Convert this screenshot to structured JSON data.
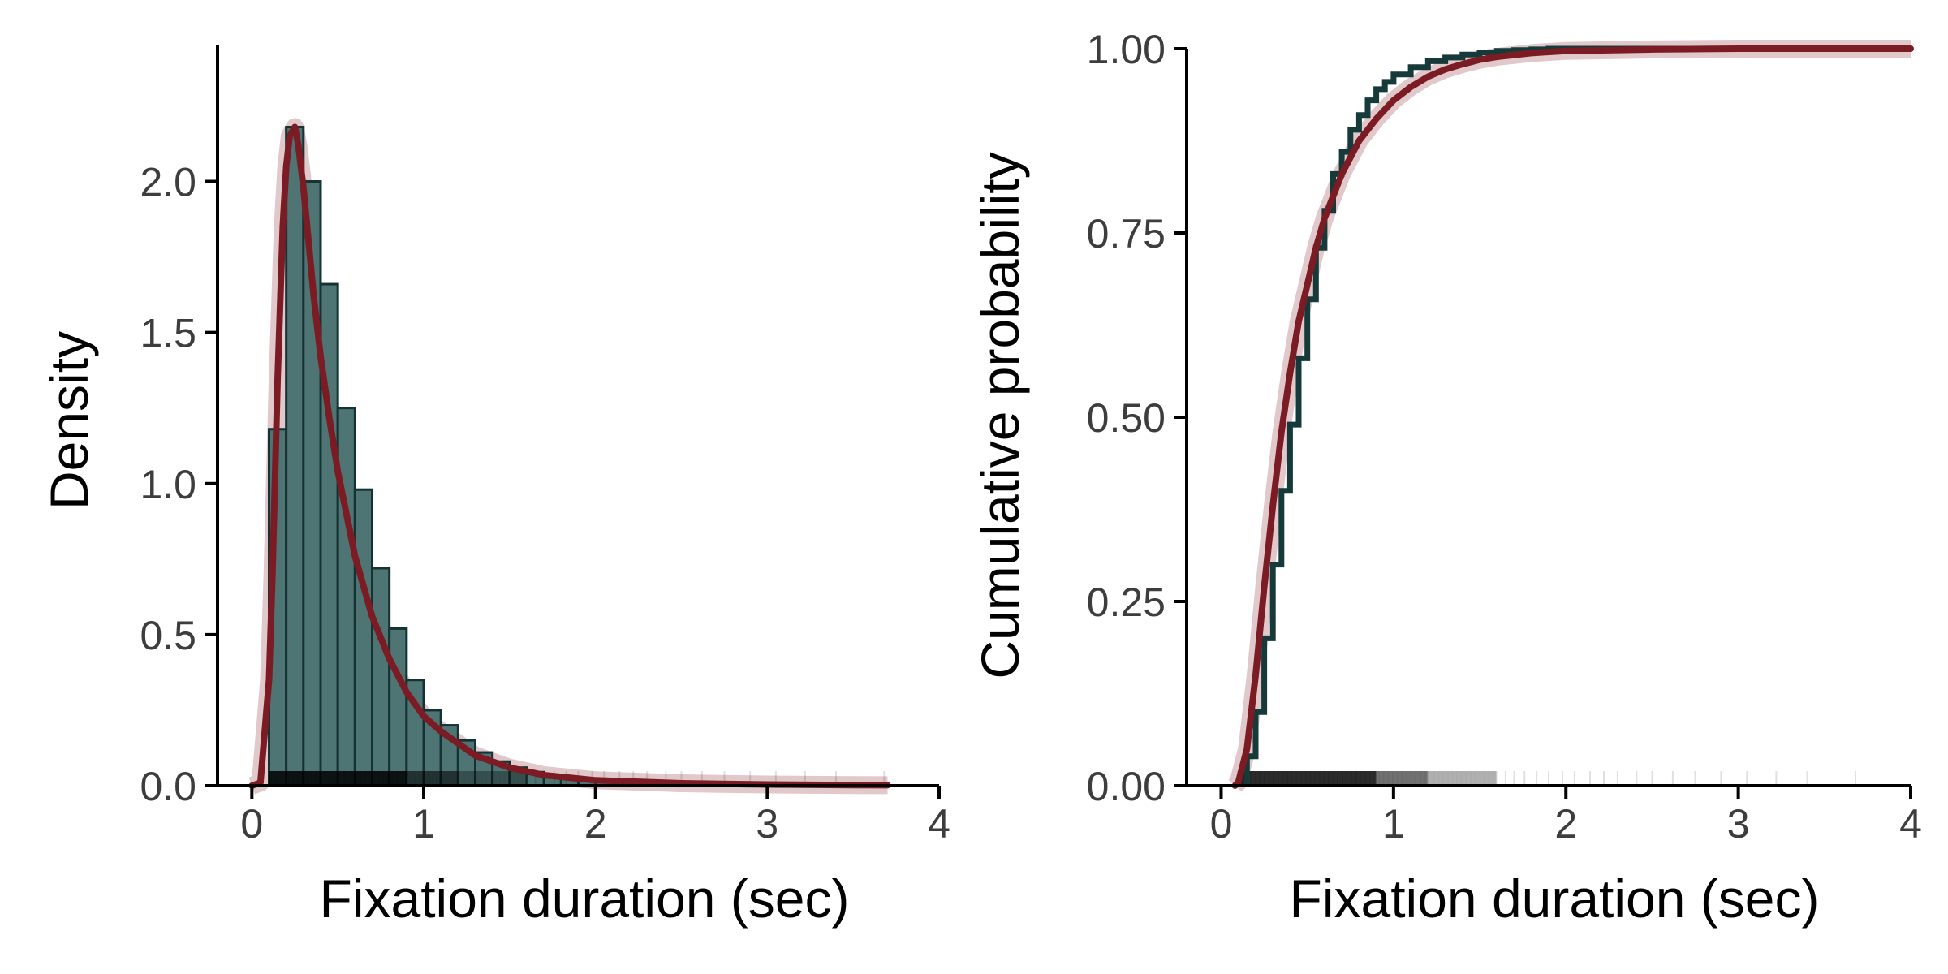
{
  "colors": {
    "bar_fill": "#4f7474",
    "bar_edge": "#163333",
    "ecdf_line": "#163a3a",
    "fit_line": "#7b1c25",
    "fit_band": "#c99a9f",
    "rug": "#000000",
    "axis": "#000000",
    "tick_text": "#3d3d3d"
  },
  "chart_data": [
    {
      "type": "histogram",
      "name": "density-panel",
      "xlabel": "Fixation duration (sec)",
      "ylabel": "Density",
      "xlim": [
        -0.2,
        4.0
      ],
      "ylim": [
        0.0,
        2.45
      ],
      "xticks": [
        0,
        1,
        2,
        3,
        4
      ],
      "xtick_labels": [
        "0",
        "1",
        "2",
        "3",
        "4"
      ],
      "yticks": [
        0.0,
        0.5,
        1.0,
        1.5,
        2.0
      ],
      "ytick_labels": [
        "0.0",
        "0.5",
        "1.0",
        "1.5",
        "2.0"
      ],
      "grid": false,
      "bin_width": 0.1,
      "bins": [
        {
          "x0": 0.0,
          "density": 0.0
        },
        {
          "x0": 0.1,
          "density": 1.18
        },
        {
          "x0": 0.2,
          "density": 2.18
        },
        {
          "x0": 0.3,
          "density": 2.0
        },
        {
          "x0": 0.4,
          "density": 1.66
        },
        {
          "x0": 0.5,
          "density": 1.25
        },
        {
          "x0": 0.6,
          "density": 0.98
        },
        {
          "x0": 0.7,
          "density": 0.72
        },
        {
          "x0": 0.8,
          "density": 0.52
        },
        {
          "x0": 0.9,
          "density": 0.35
        },
        {
          "x0": 1.0,
          "density": 0.25
        },
        {
          "x0": 1.1,
          "density": 0.2
        },
        {
          "x0": 1.2,
          "density": 0.15
        },
        {
          "x0": 1.3,
          "density": 0.11
        },
        {
          "x0": 1.4,
          "density": 0.08
        },
        {
          "x0": 1.5,
          "density": 0.06
        },
        {
          "x0": 1.6,
          "density": 0.045
        },
        {
          "x0": 1.7,
          "density": 0.035
        },
        {
          "x0": 1.8,
          "density": 0.025
        },
        {
          "x0": 1.9,
          "density": 0.02
        },
        {
          "x0": 2.0,
          "density": 0.015
        },
        {
          "x0": 2.1,
          "density": 0.012
        },
        {
          "x0": 2.2,
          "density": 0.01
        },
        {
          "x0": 2.3,
          "density": 0.008
        },
        {
          "x0": 2.4,
          "density": 0.006
        },
        {
          "x0": 2.5,
          "density": 0.005
        },
        {
          "x0": 2.6,
          "density": 0.004
        },
        {
          "x0": 2.7,
          "density": 0.003
        },
        {
          "x0": 2.8,
          "density": 0.003
        },
        {
          "x0": 2.9,
          "density": 0.002
        },
        {
          "x0": 3.0,
          "density": 0.002
        },
        {
          "x0": 3.1,
          "density": 0.002
        },
        {
          "x0": 3.2,
          "density": 0.001
        },
        {
          "x0": 3.3,
          "density": 0.001
        },
        {
          "x0": 3.4,
          "density": 0.001
        },
        {
          "x0": 3.5,
          "density": 0.001
        },
        {
          "x0": 3.6,
          "density": 0.001
        }
      ],
      "fit_curve": {
        "x": [
          0.0,
          0.05,
          0.1,
          0.12,
          0.15,
          0.18,
          0.2,
          0.22,
          0.25,
          0.27,
          0.3,
          0.33,
          0.36,
          0.4,
          0.45,
          0.5,
          0.55,
          0.6,
          0.7,
          0.8,
          0.9,
          1.0,
          1.1,
          1.2,
          1.3,
          1.4,
          1.5,
          1.7,
          2.0,
          2.5,
          3.0,
          3.5,
          3.7
        ],
        "y": [
          0.0,
          0.01,
          0.35,
          0.7,
          1.35,
          1.85,
          2.05,
          2.15,
          2.18,
          2.12,
          1.98,
          1.8,
          1.62,
          1.42,
          1.22,
          1.04,
          0.9,
          0.76,
          0.56,
          0.42,
          0.31,
          0.23,
          0.18,
          0.14,
          0.1,
          0.08,
          0.06,
          0.035,
          0.018,
          0.008,
          0.004,
          0.002,
          0.0015
        ]
      },
      "rug": {
        "from": 0.1,
        "to": 3.7,
        "dense_until": 1.6,
        "tail_points": [
          1.65,
          1.7,
          1.76,
          1.83,
          1.9,
          1.98,
          2.05,
          2.14,
          2.22,
          2.3,
          2.41,
          2.5,
          2.62,
          2.75,
          2.9,
          3.05,
          3.22,
          3.4,
          3.68
        ]
      }
    },
    {
      "type": "line",
      "name": "cdf-panel",
      "xlabel": "Fixation duration (sec)",
      "ylabel": "Cumulative probability",
      "xlim": [
        -0.2,
        4.0
      ],
      "ylim": [
        0.0,
        1.0
      ],
      "xticks": [
        0,
        1,
        2,
        3,
        4
      ],
      "xtick_labels": [
        "0",
        "1",
        "2",
        "3",
        "4"
      ],
      "yticks": [
        0.0,
        0.25,
        0.5,
        0.75,
        1.0
      ],
      "ytick_labels": [
        "0.00",
        "0.25",
        "0.50",
        "0.75",
        "1.00"
      ],
      "grid": false,
      "ecdf": {
        "x": [
          0.15,
          0.2,
          0.25,
          0.3,
          0.35,
          0.4,
          0.45,
          0.5,
          0.55,
          0.6,
          0.65,
          0.7,
          0.75,
          0.8,
          0.85,
          0.9,
          0.95,
          1.0,
          1.1,
          1.2,
          1.3,
          1.4,
          1.5,
          1.6,
          1.7,
          1.8,
          1.9,
          2.0,
          4.0
        ],
        "y": [
          0.04,
          0.1,
          0.2,
          0.3,
          0.4,
          0.49,
          0.58,
          0.66,
          0.73,
          0.78,
          0.83,
          0.86,
          0.89,
          0.91,
          0.93,
          0.945,
          0.955,
          0.965,
          0.975,
          0.983,
          0.988,
          0.992,
          0.995,
          0.997,
          0.998,
          0.999,
          1.0,
          1.0,
          1.0
        ]
      },
      "fit_cdf": {
        "x": [
          0.08,
          0.1,
          0.15,
          0.2,
          0.25,
          0.3,
          0.35,
          0.4,
          0.45,
          0.5,
          0.55,
          0.6,
          0.7,
          0.8,
          0.9,
          1.0,
          1.1,
          1.2,
          1.3,
          1.4,
          1.5,
          1.6,
          1.8,
          2.0,
          2.5,
          3.0,
          4.0
        ],
        "y": [
          0.0,
          0.005,
          0.05,
          0.15,
          0.27,
          0.38,
          0.48,
          0.56,
          0.63,
          0.68,
          0.73,
          0.77,
          0.83,
          0.875,
          0.905,
          0.93,
          0.948,
          0.962,
          0.972,
          0.979,
          0.985,
          0.989,
          0.994,
          0.997,
          0.999,
          1.0,
          1.0
        ]
      },
      "rug": {
        "from": 0.1,
        "to": 3.7,
        "dense_until": 1.6,
        "tail_points": [
          1.65,
          1.7,
          1.76,
          1.83,
          1.9,
          1.98,
          2.05,
          2.14,
          2.22,
          2.3,
          2.41,
          2.5,
          2.62,
          2.75,
          2.9,
          3.05,
          3.22,
          3.4,
          3.68
        ]
      }
    }
  ]
}
